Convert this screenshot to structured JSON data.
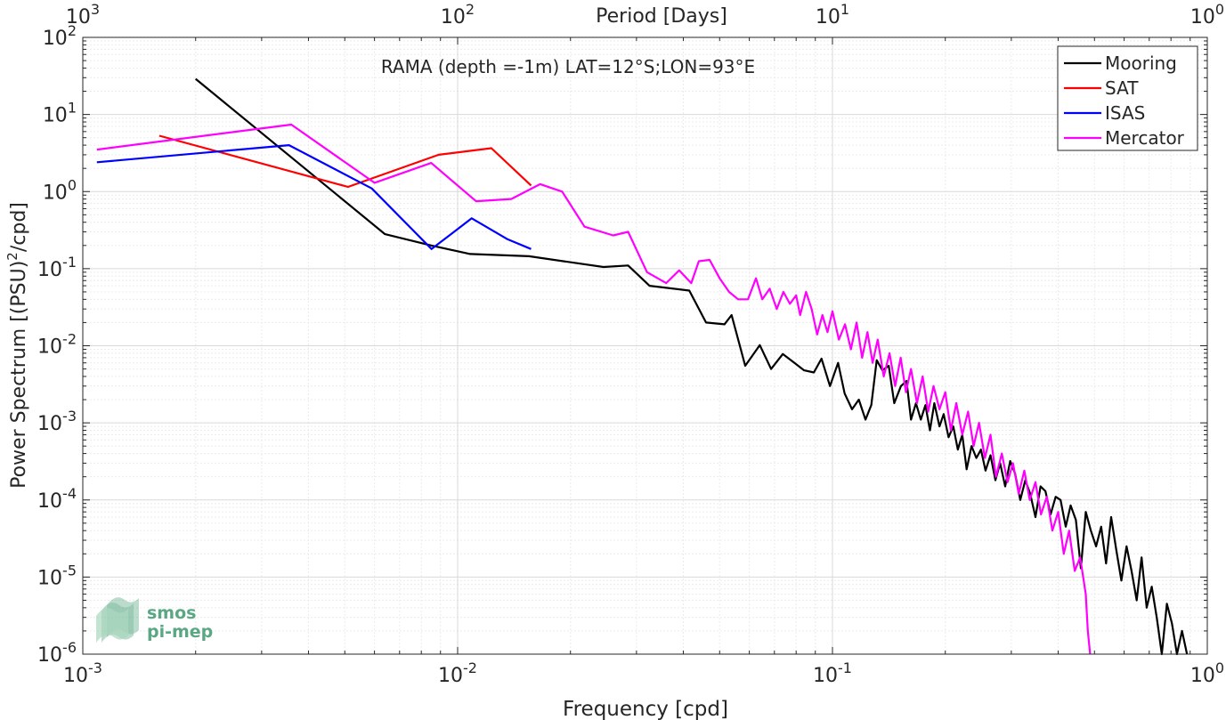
{
  "chart_data": {
    "type": "line",
    "title": "RAMA (depth =-1m) LAT=12°S;LON=93°E",
    "xlabel": "Frequency [cpd]",
    "ylabel": "Power Spectrum [(PSU)²/cpd]",
    "x2label": "Period [Days]",
    "xscale": "log",
    "yscale": "log",
    "xlim": [
      0.001,
      1
    ],
    "ylim": [
      1e-06,
      100
    ],
    "x_ticks": [
      {
        "base": "10",
        "exp": "-3"
      },
      {
        "base": "10",
        "exp": "-2"
      },
      {
        "base": "10",
        "exp": "-1"
      },
      {
        "base": "10",
        "exp": "0"
      }
    ],
    "x2_ticks": [
      {
        "base": "10",
        "exp": "3"
      },
      {
        "base": "10",
        "exp": "2"
      },
      {
        "base": "10",
        "exp": "1"
      },
      {
        "base": "10",
        "exp": "0"
      }
    ],
    "y_ticks": [
      {
        "base": "10",
        "exp": "-6"
      },
      {
        "base": "10",
        "exp": "-5"
      },
      {
        "base": "10",
        "exp": "-4"
      },
      {
        "base": "10",
        "exp": "-3"
      },
      {
        "base": "10",
        "exp": "-2"
      },
      {
        "base": "10",
        "exp": "-1"
      },
      {
        "base": "10",
        "exp": "0"
      },
      {
        "base": "10",
        "exp": "1"
      },
      {
        "base": "10",
        "exp": "2"
      }
    ],
    "grid": true,
    "legend_position": "top-right",
    "series": [
      {
        "name": "Mooring",
        "color": "#000000",
        "x": [
          0.002,
          0.0064,
          0.0085,
          0.0108,
          0.0155,
          0.0245,
          0.0285,
          0.0325,
          0.0415,
          0.046,
          0.0515,
          0.0538,
          0.0585,
          0.064,
          0.0686,
          0.0737,
          0.0785,
          0.084,
          0.0892,
          0.0935,
          0.0985,
          0.1035,
          0.1078,
          0.1128,
          0.1176,
          0.1225,
          0.1269,
          0.1312,
          0.1359,
          0.1413,
          0.1462,
          0.1523,
          0.1576,
          0.162,
          0.167,
          0.172,
          0.177,
          0.182,
          0.187,
          0.193,
          0.198,
          0.204,
          0.21,
          0.216,
          0.222,
          0.228,
          0.235,
          0.242,
          0.249,
          0.256,
          0.264,
          0.272,
          0.28,
          0.289,
          0.298,
          0.307,
          0.317,
          0.327,
          0.337,
          0.348,
          0.359,
          0.37,
          0.382,
          0.394,
          0.406,
          0.419,
          0.432,
          0.446,
          0.46,
          0.474,
          0.489,
          0.505,
          0.521,
          0.537,
          0.554,
          0.572,
          0.59,
          0.609,
          0.628,
          0.648,
          0.668,
          0.689,
          0.711,
          0.733,
          0.756,
          0.78,
          0.805,
          0.83,
          0.856,
          0.883
        ],
        "y": [
          29,
          0.28,
          0.2,
          0.155,
          0.145,
          0.105,
          0.11,
          0.06,
          0.052,
          0.02,
          0.019,
          0.025,
          0.0055,
          0.0102,
          0.005,
          0.0078,
          0.0062,
          0.0048,
          0.0045,
          0.0068,
          0.003,
          0.006,
          0.0024,
          0.0015,
          0.002,
          0.0011,
          0.0017,
          0.0065,
          0.0048,
          0.0055,
          0.0018,
          0.003,
          0.0035,
          0.0011,
          0.0018,
          0.0011,
          0.0017,
          0.0008,
          0.0018,
          0.0009,
          0.0013,
          0.00065,
          0.0009,
          0.00045,
          0.0007,
          0.00025,
          0.0005,
          0.00035,
          0.00045,
          0.00024,
          0.00038,
          0.00018,
          0.0003,
          0.00015,
          0.00032,
          0.00022,
          0.0001,
          0.00018,
          0.00012,
          6e-05,
          0.00015,
          0.00013,
          6.5e-05,
          0.00011,
          0.0001,
          4.5e-05,
          8.5e-05,
          5.5e-05,
          1.3e-05,
          7e-05,
          4e-05,
          2.5e-05,
          4.5e-05,
          1.5e-05,
          6e-05,
          2.2e-05,
          9e-06,
          2.5e-05,
          1.2e-05,
          5e-06,
          1.8e-05,
          4e-06,
          7.5e-06,
          3e-06,
          1e-06,
          4.5e-06,
          2.5e-06,
          8e-07,
          2e-06,
          9e-07
        ]
      },
      {
        "name": "SAT",
        "color": "#ff0000",
        "x": [
          0.0016,
          0.0051,
          0.0089,
          0.0123,
          0.0157
        ],
        "y": [
          5.3,
          1.15,
          3.0,
          3.65,
          1.2
        ]
      },
      {
        "name": "ISAS",
        "color": "#0000ff",
        "x": [
          0.00109,
          0.00355,
          0.0059,
          0.00852,
          0.0109,
          0.0136,
          0.0157
        ],
        "y": [
          2.4,
          4.0,
          1.1,
          0.18,
          0.45,
          0.24,
          0.18
        ]
      },
      {
        "name": "Mercator",
        "color": "#ff00ff",
        "x": [
          0.00109,
          0.0036,
          0.006,
          0.0085,
          0.0112,
          0.0139,
          0.0166,
          0.019,
          0.0218,
          0.026,
          0.0285,
          0.032,
          0.036,
          0.039,
          0.042,
          0.044,
          0.047,
          0.05,
          0.053,
          0.056,
          0.0595,
          0.0625,
          0.065,
          0.068,
          0.071,
          0.074,
          0.077,
          0.08,
          0.082,
          0.085,
          0.088,
          0.091,
          0.094,
          0.097,
          0.1,
          0.104,
          0.108,
          0.112,
          0.116,
          0.12,
          0.124,
          0.128,
          0.132,
          0.137,
          0.142,
          0.147,
          0.152,
          0.157,
          0.162,
          0.168,
          0.174,
          0.18,
          0.186,
          0.193,
          0.2,
          0.207,
          0.214,
          0.222,
          0.23,
          0.238,
          0.246,
          0.255,
          0.264,
          0.273,
          0.283,
          0.293,
          0.303,
          0.314,
          0.325,
          0.336,
          0.348,
          0.36,
          0.373,
          0.386,
          0.4,
          0.414,
          0.428,
          0.443,
          0.458,
          0.474,
          0.48,
          0.487
        ],
        "y": [
          3.5,
          7.4,
          1.3,
          2.35,
          0.75,
          0.8,
          1.25,
          1.0,
          0.35,
          0.27,
          0.3,
          0.09,
          0.065,
          0.095,
          0.065,
          0.125,
          0.13,
          0.075,
          0.05,
          0.04,
          0.04,
          0.075,
          0.04,
          0.055,
          0.03,
          0.05,
          0.035,
          0.045,
          0.025,
          0.05,
          0.03,
          0.014,
          0.025,
          0.015,
          0.028,
          0.012,
          0.019,
          0.009,
          0.02,
          0.007,
          0.015,
          0.006,
          0.012,
          0.004,
          0.008,
          0.003,
          0.007,
          0.0025,
          0.005,
          0.0018,
          0.004,
          0.0014,
          0.003,
          0.0015,
          0.0025,
          0.0008,
          0.0018,
          0.0007,
          0.0014,
          0.0005,
          0.001,
          0.00035,
          0.0007,
          0.0002,
          0.0004,
          0.00017,
          0.0003,
          0.00012,
          0.00024,
          0.0001,
          0.00017,
          6.5e-05,
          0.00011,
          4e-05,
          7e-05,
          2e-05,
          4e-05,
          1.2e-05,
          1.8e-05,
          6e-06,
          2e-06,
          1e-06
        ]
      }
    ]
  },
  "logo": {
    "line1": "smos",
    "line2": "pi-mep",
    "color": "#5aa784"
  }
}
